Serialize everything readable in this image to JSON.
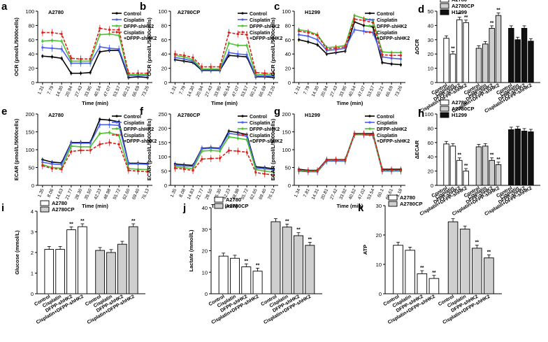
{
  "figure": {
    "colors": {
      "control": "#000000",
      "cisplatin": "#4a62ee",
      "dfpp": "#4ec234",
      "combo": "#d9221c",
      "a2780": "#ffffff",
      "a2780cp": "#cfcfcf",
      "h1299": "#111111",
      "axis": "#000000"
    }
  },
  "chart_data": [
    {
      "type": "line",
      "panel": "a",
      "title": "A2780",
      "ylabel": "OCR (pmol/L/5000cells)",
      "xlabel": "Time (min)",
      "ylim": [
        0,
        100
      ],
      "yticks": [
        0,
        20,
        40,
        60,
        80,
        100
      ],
      "x": [
        "1.31",
        "7.79",
        "14.30",
        "20.94",
        "27.43",
        "33.95",
        "40.54",
        "47.07",
        "53.57",
        "60.21",
        "66.69",
        "73.26"
      ],
      "legend": [
        "Control",
        "Cisplatin",
        "DFPP-shHK2",
        "Cisplatin\n+DFPP-shHK2"
      ],
      "series": [
        {
          "name": "Control",
          "color": "control",
          "values": [
            37,
            36,
            34,
            13,
            13,
            14,
            43,
            45,
            45,
            7,
            8,
            7
          ]
        },
        {
          "name": "Cisplatin",
          "color": "cisplatin",
          "values": [
            49,
            48,
            47,
            27,
            27,
            27,
            50,
            48,
            47,
            10,
            10,
            10
          ]
        },
        {
          "name": "DFPP-shHK2",
          "color": "dfpp",
          "values": [
            58,
            59,
            58,
            30,
            30,
            30,
            67,
            68,
            66,
            11,
            11,
            11
          ]
        },
        {
          "name": "Cisplatin +DFPP-shHK2",
          "color": "combo",
          "dash": true,
          "values": [
            70,
            70,
            68,
            34,
            33,
            33,
            76,
            74,
            74,
            13,
            13,
            13
          ]
        }
      ]
    },
    {
      "type": "line",
      "panel": "b",
      "title": "A2780CP",
      "ylabel": "OCR (pmol/L/5000cells)",
      "xlabel": "Time (min)",
      "ylim": [
        0,
        100
      ],
      "yticks": [
        0,
        20,
        40,
        60,
        80,
        100
      ],
      "x": [
        "1.31",
        "7.79",
        "14.30",
        "20.94",
        "27.43",
        "33.95",
        "40.54",
        "47.07",
        "53.57",
        "60.21",
        "66.69",
        "73.26"
      ],
      "legend": [
        "Control",
        "Cisplatin",
        "DFPP-shHK2",
        "Cisplatin\n+DFPP-shHK2"
      ],
      "series": [
        {
          "name": "Control",
          "color": "control",
          "values": [
            32,
            30,
            28,
            17,
            17,
            17,
            38,
            37,
            36,
            8,
            8,
            7
          ]
        },
        {
          "name": "Cisplatin",
          "color": "cisplatin",
          "values": [
            35,
            33,
            30,
            18,
            18,
            18,
            42,
            40,
            39,
            9,
            9,
            9
          ]
        },
        {
          "name": "DFPP-shHK2",
          "color": "dfpp",
          "values": [
            38,
            36,
            32,
            19,
            19,
            19,
            55,
            52,
            52,
            11,
            11,
            11
          ]
        },
        {
          "name": "Cisplatin +DFPP-shHK2",
          "color": "combo",
          "dash": true,
          "values": [
            40,
            38,
            35,
            22,
            22,
            22,
            70,
            68,
            67,
            14,
            13,
            13
          ]
        }
      ]
    },
    {
      "type": "line",
      "panel": "c",
      "title": "H1299",
      "ylabel": "OCR (pmol/L/5000cells)",
      "xlabel": "Time (min)",
      "ylim": [
        0,
        100
      ],
      "yticks": [
        0,
        20,
        40,
        60,
        80,
        100
      ],
      "x": [
        "1.31",
        "7.79",
        "14.30",
        "20.94",
        "27.43",
        "33.95",
        "40.54",
        "47.07",
        "53.57",
        "60.21",
        "66.69",
        "73.26"
      ],
      "legend": [
        "Control",
        "Cisplatin",
        "DFPP-shHK2",
        "Cisplatin\n+DFPP-shHK2"
      ],
      "series": [
        {
          "name": "Control",
          "color": "control",
          "values": [
            60,
            57,
            53,
            40,
            42,
            44,
            85,
            80,
            78,
            28,
            26,
            25
          ]
        },
        {
          "name": "Cisplatin",
          "color": "cisplatin",
          "values": [
            67,
            65,
            60,
            45,
            46,
            48,
            74,
            72,
            70,
            36,
            34,
            33
          ]
        },
        {
          "name": "DFPP-shHK2",
          "color": "dfpp",
          "values": [
            74,
            72,
            67,
            49,
            50,
            52,
            94,
            90,
            87,
            43,
            42,
            42
          ]
        },
        {
          "name": "Cisplatin +DFPP-shHK2",
          "color": "combo",
          "dash": true,
          "values": [
            72,
            70,
            66,
            47,
            48,
            50,
            89,
            87,
            84,
            39,
            38,
            38
          ]
        }
      ]
    },
    {
      "type": "bar",
      "panel": "d",
      "ylabel": "ΔOCR",
      "ylim": [
        0,
        50
      ],
      "yticks": [
        0,
        10,
        20,
        30,
        40,
        50
      ],
      "categories": [
        "Control",
        "Cisplatin",
        "DFPP-shHK2",
        "Cisplatin+DFPP-shHK2"
      ],
      "legend": [
        "A2780",
        "A2780CP",
        "H1299"
      ],
      "groups": [
        {
          "name": "A2780",
          "color": "a2780",
          "values": [
            31,
            20,
            44,
            42
          ],
          "stars": [
            "",
            "**",
            "**",
            "**"
          ]
        },
        {
          "name": "A2780CP",
          "color": "a2780cp",
          "values": [
            24,
            27,
            38,
            47
          ],
          "stars": [
            "",
            "",
            "**",
            "**"
          ]
        },
        {
          "name": "H1299",
          "color": "h1299",
          "values": [
            38,
            30,
            38,
            29
          ],
          "stars": [
            "",
            "",
            "",
            ""
          ]
        }
      ]
    },
    {
      "type": "line",
      "panel": "e",
      "title": "A2780",
      "ylabel": "ECAR (pmol/L/5000cells)",
      "xlabel": "Time (min)",
      "ylim": [
        0,
        200
      ],
      "yticks": [
        0,
        50,
        100,
        150,
        200
      ],
      "x": [
        "1.35",
        "8.06",
        "14.63",
        "21.77",
        "28.30",
        "35.50",
        "42.23",
        "48.98",
        "55.72",
        "62.60",
        "69.40",
        "76.13"
      ],
      "legend": [
        "Control",
        "Cisplatin",
        "DFPP-shHK2",
        "Cisplatin\n+DFPP-shHK2"
      ],
      "series": [
        {
          "name": "Control",
          "color": "control",
          "values": [
            72,
            65,
            63,
            120,
            120,
            120,
            185,
            183,
            178,
            62,
            62,
            61
          ]
        },
        {
          "name": "Cisplatin",
          "color": "cisplatin",
          "values": [
            65,
            60,
            58,
            118,
            118,
            118,
            170,
            170,
            168,
            60,
            60,
            59
          ]
        },
        {
          "name": "DFPP-shHK2",
          "color": "dfpp",
          "values": [
            58,
            50,
            48,
            110,
            108,
            108,
            145,
            148,
            140,
            47,
            45,
            44
          ]
        },
        {
          "name": "Cisplatin +DFPP-shHK2",
          "color": "combo",
          "dash": true,
          "values": [
            55,
            47,
            45,
            95,
            98,
            98,
            115,
            120,
            115,
            42,
            40,
            38
          ]
        }
      ]
    },
    {
      "type": "line",
      "panel": "f",
      "title": "A2780CP",
      "ylabel": "ECAR (pmol/L/5000cells)",
      "xlabel": "Time (min)",
      "ylim": [
        0,
        250
      ],
      "yticks": [
        0,
        50,
        100,
        150,
        200,
        250
      ],
      "x": [
        "1.35",
        "8.08",
        "14.83",
        "21.77",
        "28.50",
        "35.30",
        "42.23",
        "48.98",
        "55.72",
        "62.65",
        "69.40",
        "76.13"
      ],
      "legend": [
        "Control",
        "Cisplatin",
        "DFPP-shHK2",
        "Cisplatin\n+DFPP-shHK2"
      ],
      "series": [
        {
          "name": "Control",
          "color": "control",
          "values": [
            75,
            72,
            70,
            130,
            132,
            130,
            190,
            185,
            178,
            65,
            62,
            58
          ]
        },
        {
          "name": "Cisplatin",
          "color": "cisplatin",
          "values": [
            70,
            68,
            66,
            128,
            130,
            128,
            182,
            178,
            172,
            60,
            58,
            55
          ]
        },
        {
          "name": "DFPP-shHK2",
          "color": "dfpp",
          "values": [
            65,
            62,
            58,
            120,
            122,
            120,
            170,
            165,
            160,
            55,
            50,
            46
          ]
        },
        {
          "name": "Cisplatin +DFPP-shHK2",
          "color": "combo",
          "dash": true,
          "values": [
            60,
            57,
            52,
            92,
            94,
            95,
            122,
            120,
            116,
            45,
            40,
            36
          ]
        }
      ]
    },
    {
      "type": "line",
      "panel": "g",
      "title": "H1299",
      "ylabel": "ECAR (pmol/L/5000cells)",
      "xlabel": "Time (min)",
      "ylim": [
        0,
        200
      ],
      "yticks": [
        0,
        50,
        100,
        150,
        200
      ],
      "x": [
        "1.34",
        "7.81",
        "14.31",
        "20.81",
        "27.42",
        "33.92",
        "40.52",
        "47.02",
        "53.54",
        "60.1",
        "66.61",
        "73.18"
      ],
      "legend": [
        "Control",
        "Cisplatin",
        "DFPP-shHK2",
        "Cisplatin\n+DFPP-shHK2"
      ],
      "series": [
        {
          "name": "Control",
          "color": "control",
          "values": [
            45,
            42,
            42,
            72,
            72,
            72,
            145,
            145,
            145,
            45,
            45,
            45
          ]
        },
        {
          "name": "Cisplatin",
          "color": "cisplatin",
          "values": [
            40,
            38,
            38,
            68,
            68,
            68,
            142,
            142,
            140,
            40,
            40,
            40
          ]
        },
        {
          "name": "DFPP-shHK2",
          "color": "dfpp",
          "values": [
            42,
            40,
            40,
            70,
            70,
            70,
            143,
            143,
            142,
            42,
            42,
            42
          ]
        },
        {
          "name": "Cisplatin +DFPP-shHK2",
          "color": "combo",
          "dash": true,
          "values": [
            43,
            41,
            41,
            71,
            71,
            71,
            144,
            144,
            143,
            43,
            43,
            43
          ]
        }
      ]
    },
    {
      "type": "bar",
      "panel": "h",
      "ylabel": "ΔECAR",
      "ylim": [
        0,
        100
      ],
      "yticks": [
        0,
        20,
        40,
        60,
        80,
        100
      ],
      "categories": [
        "Control",
        "Cisplatin",
        "DFPP-shHK2",
        "Cisplatin+DFPP-shHK2"
      ],
      "legend": [
        "A2780",
        "A2780CP",
        "H1299"
      ],
      "groups": [
        {
          "name": "A2780",
          "color": "a2780",
          "values": [
            58,
            55,
            35,
            20
          ],
          "stars": [
            "",
            "",
            "**",
            "**"
          ]
        },
        {
          "name": "A2780CP",
          "color": "a2780cp",
          "values": [
            54,
            55,
            35,
            29
          ],
          "stars": [
            "",
            "",
            "**",
            "**"
          ]
        },
        {
          "name": "H1299",
          "color": "h1299",
          "values": [
            78,
            79,
            76,
            75
          ],
          "stars": [
            "",
            "",
            "",
            ""
          ]
        }
      ]
    },
    {
      "type": "bar",
      "panel": "i",
      "ylabel": "Glucose (mmol/L)",
      "ylim": [
        0,
        4
      ],
      "yticks": [
        0,
        1,
        2,
        3,
        4
      ],
      "categories": [
        "Control",
        "Cisplatin",
        "DFPP-shHK2",
        "Cisplatin+DFPP-shHK2"
      ],
      "legend": [
        "A2780",
        "A2780CP"
      ],
      "groups": [
        {
          "name": "A2780",
          "color": "a2780",
          "values": [
            2.15,
            2.15,
            3.1,
            3.25
          ],
          "stars": [
            "",
            "",
            "**",
            "**"
          ]
        },
        {
          "name": "A2780CP",
          "color": "a2780cp",
          "values": [
            2.1,
            2.0,
            2.4,
            3.25
          ],
          "stars": [
            "",
            "",
            "",
            "**"
          ]
        }
      ]
    },
    {
      "type": "bar",
      "panel": "j",
      "ylabel": "Lactate (mmol/L)",
      "ylim": [
        0,
        40
      ],
      "yticks": [
        0,
        10,
        20,
        30,
        40
      ],
      "categories": [
        "Control",
        "Cisplatin",
        "DFPP-shHK2",
        "Cisplatin+DFPP-shHK2"
      ],
      "legend": [
        "A2780",
        "A2780CP"
      ],
      "groups": [
        {
          "name": "A2780",
          "color": "a2780",
          "values": [
            17.5,
            16.5,
            12.5,
            10.5
          ],
          "stars": [
            "",
            "",
            "**",
            "**"
          ]
        },
        {
          "name": "A2780CP",
          "color": "a2780cp",
          "values": [
            33.5,
            31,
            27,
            22.5
          ],
          "stars": [
            "",
            "**",
            "**",
            "**"
          ]
        }
      ]
    },
    {
      "type": "bar",
      "panel": "k",
      "ylabel": "ATP",
      "ylim": [
        0,
        30
      ],
      "yticks": [
        0,
        10,
        20,
        30
      ],
      "categories": [
        "Control",
        "Cisplatin",
        "DFPP-shHK2",
        "Cisplatin+DFPP-shHK2"
      ],
      "legend": [
        "A2780",
        "A2780CP"
      ],
      "groups": [
        {
          "name": "A2780",
          "color": "a2780",
          "values": [
            16.5,
            14.8,
            6.8,
            5.2
          ],
          "stars": [
            "",
            "",
            "**",
            "**"
          ]
        },
        {
          "name": "A2780CP",
          "color": "a2780cp",
          "values": [
            24.5,
            22,
            15.5,
            12.2
          ],
          "stars": [
            "",
            "",
            "**",
            "**"
          ]
        }
      ]
    }
  ]
}
